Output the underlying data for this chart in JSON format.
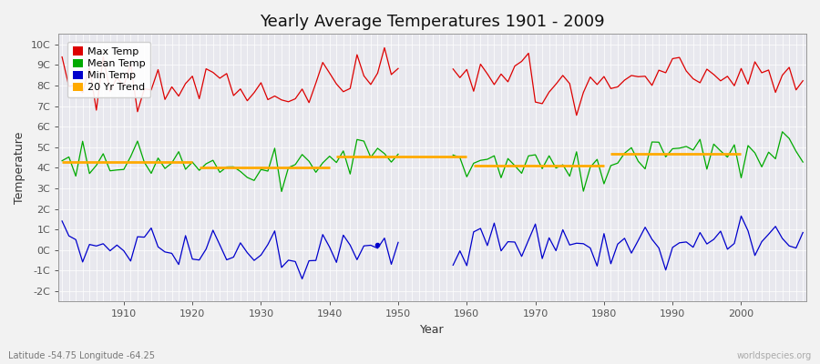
{
  "title": "Yearly Average Temperatures 1901 - 2009",
  "xlabel": "Year",
  "ylabel": "Temperature",
  "lat_lon_label": "Latitude -54.75 Longitude -64.25",
  "watermark": "worldspecies.org",
  "ylim": [
    -2.5,
    10.5
  ],
  "yticks": [
    -2,
    -1,
    0,
    1,
    2,
    3,
    4,
    5,
    6,
    7,
    8,
    9,
    10
  ],
  "ytick_labels": [
    "-2C",
    "-1C",
    "0C",
    "1C",
    "2C",
    "3C",
    "4C",
    "5C",
    "6C",
    "7C",
    "8C",
    "9C",
    "10C"
  ],
  "year_start": 1901,
  "year_end": 2009,
  "max_temp_color": "#dd0000",
  "mean_temp_color": "#00aa00",
  "min_temp_color": "#0000cc",
  "trend_color": "#ffaa00",
  "fig_bg_color": "#f2f2f2",
  "plot_bg_color": "#e8e8ee",
  "grid_color": "#ffffff",
  "title_fontsize": 13,
  "axis_label_fontsize": 9,
  "tick_label_fontsize": 8,
  "legend_fontsize": 8
}
